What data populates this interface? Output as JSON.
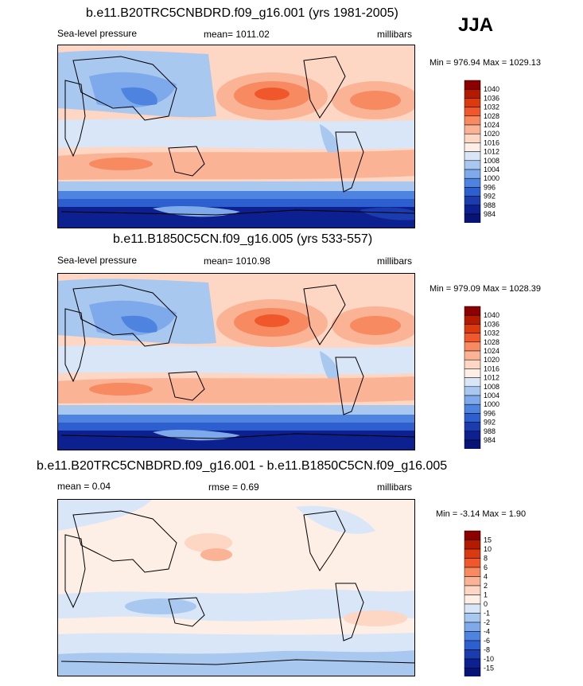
{
  "season": "JJA",
  "panels": [
    {
      "title": "b.e11.B20TRC5CNBDRD.f09_g16.001 (yrs 1981-2005)",
      "left_label": "Sea-level pressure",
      "mid_label": "mean= 1011.02",
      "units": "millibars",
      "minmax": "Min = 976.94 Max = 1029.13"
    },
    {
      "title": "b.e11.B1850C5CN.f09_g16.005 (yrs 533-557)",
      "left_label": "Sea-level pressure",
      "mid_label": "mean= 1010.98",
      "units": "millibars",
      "minmax": "Min = 979.09 Max = 1028.39"
    },
    {
      "title": "b.e11.B20TRC5CNBDRD.f09_g16.001 - b.e11.B1850C5CN.f09_g16.005",
      "left_label": "mean =   0.04",
      "mid_label": "rmse =   0.69",
      "units": "millibars",
      "minmax": "Min =  -3.14 Max =   1.90"
    }
  ],
  "chart_data": [
    {
      "type": "heatmap",
      "title": "b.e11.B20TRC5CNBDRD.f09_g16.001 (yrs 1981-2005)",
      "variable": "Sea-level pressure",
      "units": "millibars",
      "mean": 1011.02,
      "min": 976.94,
      "max": 1029.13,
      "colorbar_levels": [
        1040,
        1036,
        1032,
        1028,
        1024,
        1020,
        1016,
        1012,
        1008,
        1004,
        1000,
        996,
        992,
        988,
        984
      ],
      "colorbar_colors": [
        "#8b0000",
        "#b31a00",
        "#d93a0e",
        "#f0582c",
        "#f78a60",
        "#fbb396",
        "#fdd6c4",
        "#fdeee6",
        "#d8e6f7",
        "#a9c8f0",
        "#7ea9ea",
        "#4f83e0",
        "#2d5fcf",
        "#1a3caf",
        "#0c2090",
        "#071475"
      ]
    },
    {
      "type": "heatmap",
      "title": "b.e11.B1850C5CN.f09_g16.005 (yrs 533-557)",
      "variable": "Sea-level pressure",
      "units": "millibars",
      "mean": 1010.98,
      "min": 979.09,
      "max": 1028.39,
      "colorbar_levels": [
        1040,
        1036,
        1032,
        1028,
        1024,
        1020,
        1016,
        1012,
        1008,
        1004,
        1000,
        996,
        992,
        988,
        984
      ],
      "colorbar_colors": [
        "#8b0000",
        "#b31a00",
        "#d93a0e",
        "#f0582c",
        "#f78a60",
        "#fbb396",
        "#fdd6c4",
        "#fdeee6",
        "#d8e6f7",
        "#a9c8f0",
        "#7ea9ea",
        "#4f83e0",
        "#2d5fcf",
        "#1a3caf",
        "#0c2090",
        "#071475"
      ]
    },
    {
      "type": "heatmap",
      "title": "b.e11.B20TRC5CNBDRD.f09_g16.001 - b.e11.B1850C5CN.f09_g16.005",
      "units": "millibars",
      "mean": 0.04,
      "rmse": 0.69,
      "min": -3.14,
      "max": 1.9,
      "colorbar_levels": [
        15,
        10,
        8,
        6,
        4,
        2,
        1,
        0,
        -1,
        -2,
        -4,
        -6,
        -8,
        -10,
        -15
      ],
      "colorbar_colors": [
        "#8b0000",
        "#b31a00",
        "#d93a0e",
        "#f0582c",
        "#f78a60",
        "#fbb396",
        "#fdd6c4",
        "#fdeee6",
        "#d8e6f7",
        "#a9c8f0",
        "#7ea9ea",
        "#4f83e0",
        "#2d5fcf",
        "#1a3caf",
        "#0c2090",
        "#071475"
      ]
    }
  ]
}
